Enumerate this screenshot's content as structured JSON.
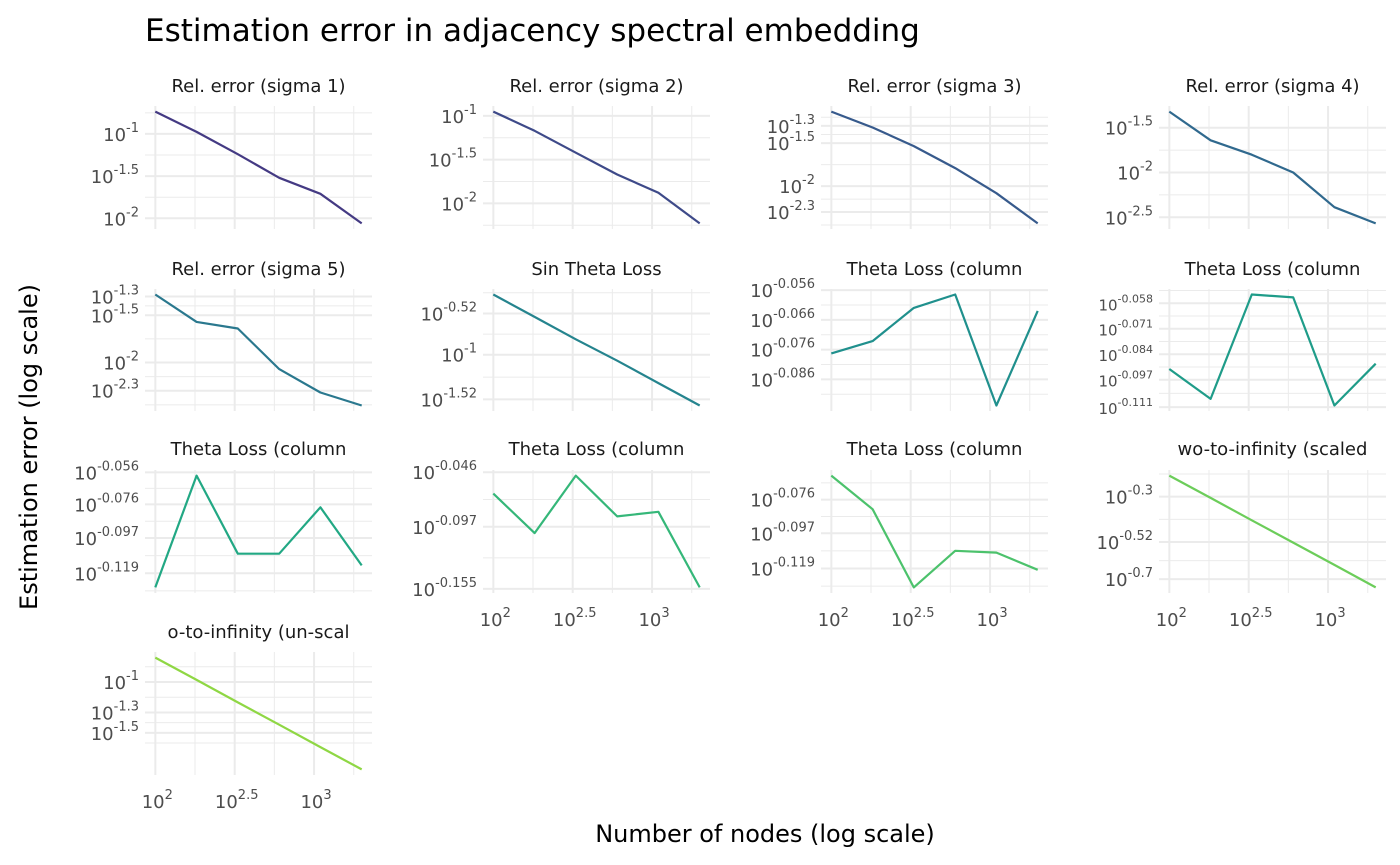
{
  "chart_data": {
    "type": "line",
    "title": "Estimation error in adjacency spectral embedding",
    "xlabel": "Number of nodes (log scale)",
    "ylabel": "Estimation error (log scale)",
    "x_scale": "log10",
    "y_scale": "log10",
    "x": [
      100,
      182,
      331,
      603,
      1096,
      1995
    ],
    "x_breaks": [
      2,
      2.5,
      3
    ],
    "x_tick_labels": [
      "2",
      "2.5",
      "3"
    ],
    "tick_base": "10",
    "grid": true,
    "panels": [
      {
        "title": "Rel. error (sigma 1)",
        "color": "#443a83",
        "y": [
          0.184,
          0.1057,
          0.0575,
          0.0302,
          0.0195,
          0.0087
        ],
        "y_breaks": [
          -1,
          -1.5,
          -2
        ],
        "y_tick_labels": [
          "-1",
          "-1.5",
          "-2"
        ]
      },
      {
        "title": "Rel. error (sigma 2)",
        "color": "#3e4a89",
        "y": [
          0.112,
          0.0676,
          0.038,
          0.0214,
          0.0132,
          0.0059
        ],
        "y_breaks": [
          -1,
          -1.5,
          -2
        ],
        "y_tick_labels": [
          "-1",
          "-1.5",
          "-2"
        ]
      },
      {
        "title": "Rel. error (sigma 3)",
        "color": "#375a8c",
        "y": [
          0.0733,
          0.0479,
          0.0292,
          0.0162,
          0.0083,
          0.0037
        ],
        "y_breaks": [
          -1.3,
          -1.5,
          -2,
          -2.3
        ],
        "y_tick_labels": [
          "-1.3",
          "-1.5",
          "-2",
          "-2.3"
        ]
      },
      {
        "title": "Rel. error (sigma 4)",
        "color": "#30698e",
        "y": [
          0.0479,
          0.0229,
          0.0158,
          0.01,
          0.0041,
          0.0027
        ],
        "y_breaks": [
          -1.5,
          -2,
          -2.5
        ],
        "y_tick_labels": [
          "-1.5",
          "-2",
          "-2.5"
        ]
      },
      {
        "title": "Rel. error (sigma 5)",
        "color": "#2a788e",
        "y": [
          0.0525,
          0.0269,
          0.0229,
          0.0085,
          0.0048,
          0.0035
        ],
        "y_breaks": [
          -1.3,
          -1.5,
          -2,
          -2.3
        ],
        "y_tick_labels": [
          "-1.3",
          "-1.5",
          "-2",
          "-2.3"
        ]
      },
      {
        "title": "Sin Theta Loss",
        "color": "#25848e",
        "y": [
          0.501,
          0.275,
          0.151,
          0.0851,
          0.0468,
          0.0257
        ],
        "y_breaks": [
          -0.52,
          -1,
          -1.52
        ],
        "y_tick_labels": [
          "-0.52",
          "-1",
          "-1.52"
        ]
      },
      {
        "title": "Theta Loss (column",
        "color": "#20908d",
        "y": [
          0.837,
          0.845,
          0.867,
          0.876,
          0.804,
          0.865
        ],
        "y_breaks": [
          -0.056,
          -0.066,
          -0.076,
          -0.086
        ],
        "y_tick_labels": [
          "-0.056",
          "-0.066",
          "-0.076",
          "-0.086"
        ]
      },
      {
        "title": "Theta Loss (column",
        "color": "#1f9c89",
        "y": [
          0.81,
          0.782,
          0.884,
          0.881,
          0.776,
          0.815
        ],
        "y_breaks": [
          -0.058,
          -0.071,
          -0.084,
          -0.097,
          -0.111
        ],
        "y_tick_labels": [
          "-0.058",
          "-0.071",
          "-0.084",
          "-0.097",
          "-0.111"
        ]
      },
      {
        "title": "Theta Loss (column",
        "color": "#22a884",
        "y": [
          0.745,
          0.875,
          0.782,
          0.782,
          0.836,
          0.769
        ],
        "y_breaks": [
          -0.056,
          -0.076,
          -0.097,
          -0.119
        ],
        "y_tick_labels": [
          "-0.056",
          "-0.076",
          "-0.097",
          "-0.119"
        ]
      },
      {
        "title": "Theta Loss (column",
        "color": "#35b779",
        "y": [
          0.859,
          0.789,
          0.893,
          0.818,
          0.826,
          0.702
        ],
        "y_breaks": [
          -0.046,
          -0.097,
          -0.155
        ],
        "y_tick_labels": [
          "-0.046",
          "-0.097",
          "-0.155"
        ]
      },
      {
        "title": "Theta Loss (column",
        "color": "#4cc26c",
        "y": [
          0.869,
          0.828,
          0.74,
          0.78,
          0.778,
          0.759
        ],
        "y_breaks": [
          -0.076,
          -0.097,
          -0.119
        ],
        "y_tick_labels": [
          "-0.076",
          "-0.097",
          "-0.119"
        ]
      },
      {
        "title": "wo-to-infinity (scaled",
        "color": "#6ccd5a",
        "y": [
          0.634,
          0.494,
          0.385,
          0.3,
          0.234,
          0.182
        ],
        "y_breaks": [
          -0.3,
          -0.52,
          -0.7
        ],
        "y_tick_labels": [
          "-0.3",
          "-0.52",
          "-0.7"
        ]
      },
      {
        "title": "o-to-infinity (un-scal",
        "color": "#8fd744",
        "y": [
          0.174,
          0.105,
          0.063,
          0.038,
          0.0229,
          0.0138
        ],
        "y_breaks": [
          -1,
          -1.3,
          -1.5
        ],
        "y_tick_labels": [
          "-1",
          "-1.3",
          "-1.5"
        ]
      }
    ]
  }
}
